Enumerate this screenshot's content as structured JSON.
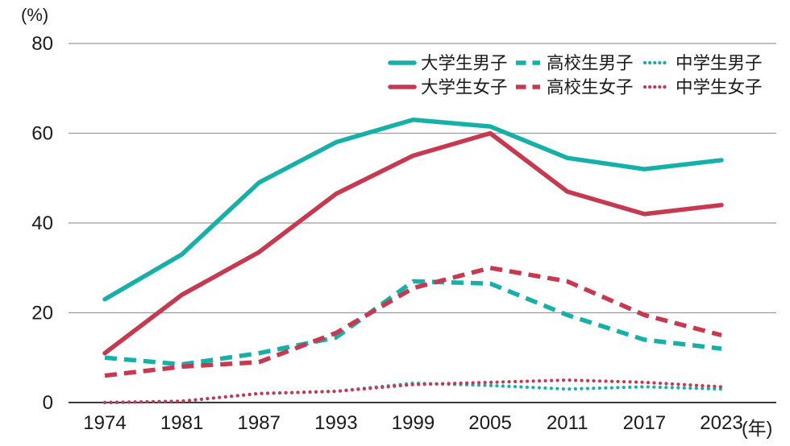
{
  "chart_data": {
    "type": "line",
    "title": "",
    "unit_y": "(%)",
    "unit_x": "(年)",
    "categories": [
      "1974",
      "1981",
      "1987",
      "1993",
      "1999",
      "2005",
      "2011",
      "2017",
      "2023"
    ],
    "y_ticks": [
      0,
      20,
      40,
      60,
      80
    ],
    "ylim": [
      0,
      80
    ],
    "grid": true,
    "legend_position": "top-right",
    "colors": {
      "teal": "#17b0a9",
      "crimson": "#c53a50"
    },
    "series": [
      {
        "key": "university-male",
        "name": "大学生男子",
        "color": "teal",
        "style": "solid",
        "values": [
          23,
          33,
          49,
          58,
          63,
          61.5,
          54.5,
          52,
          54
        ]
      },
      {
        "key": "university-female",
        "name": "大学生女子",
        "color": "crimson",
        "style": "solid",
        "values": [
          11,
          24,
          33.5,
          46.5,
          55,
          60,
          47,
          42,
          44
        ]
      },
      {
        "key": "highschool-male",
        "name": "高校生男子",
        "color": "teal",
        "style": "dashed",
        "values": [
          10,
          8.5,
          11,
          14.5,
          27,
          26.5,
          19.5,
          14,
          12
        ]
      },
      {
        "key": "highschool-female",
        "name": "高校生女子",
        "color": "crimson",
        "style": "dashed",
        "values": [
          6,
          8,
          9,
          15.5,
          25.5,
          30,
          27,
          19.5,
          15
        ]
      },
      {
        "key": "juniorhigh-male",
        "name": "中学生男子",
        "color": "teal",
        "style": "dotted",
        "values": [
          0,
          0.3,
          2,
          2.5,
          4.3,
          3.8,
          3,
          3.5,
          3
        ]
      },
      {
        "key": "juniorhigh-female",
        "name": "中学生女子",
        "color": "crimson",
        "style": "dotted",
        "values": [
          0,
          0.3,
          2,
          2.5,
          4,
          4.5,
          5,
          4.5,
          3.5
        ]
      }
    ]
  }
}
